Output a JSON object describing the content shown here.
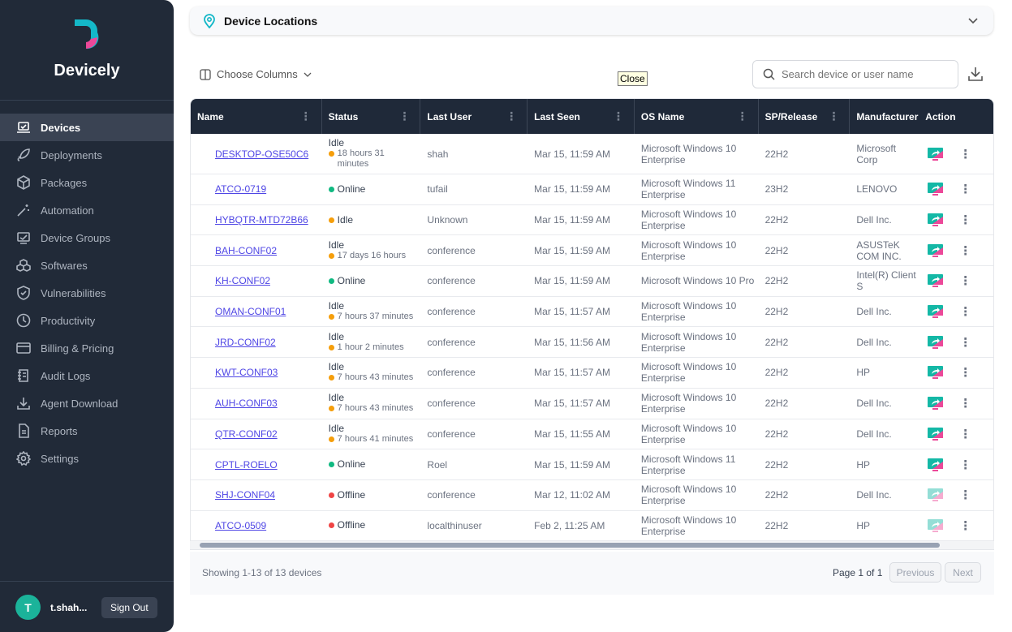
{
  "brand": {
    "name": "Devicely",
    "colors": {
      "teal": "#14b8c8",
      "pink": "#ec4899"
    }
  },
  "sidebar": {
    "items": [
      {
        "label": "Devices",
        "icon": "laptop-check-icon",
        "active": true
      },
      {
        "label": "Deployments",
        "icon": "rocket-icon"
      },
      {
        "label": "Packages",
        "icon": "package-icon"
      },
      {
        "label": "Automation",
        "icon": "magic-wand-icon"
      },
      {
        "label": "Device Groups",
        "icon": "device-group-icon"
      },
      {
        "label": "Softwares",
        "icon": "cubes-icon"
      },
      {
        "label": "Vulnerabilities",
        "icon": "shield-icon"
      },
      {
        "label": "Productivity",
        "icon": "clock-icon"
      },
      {
        "label": "Billing & Pricing",
        "icon": "credit-card-icon"
      },
      {
        "label": "Audit Logs",
        "icon": "audit-log-icon"
      },
      {
        "label": "Agent Download",
        "icon": "download-icon"
      },
      {
        "label": "Reports",
        "icon": "report-icon"
      },
      {
        "label": "Settings",
        "icon": "gear-icon"
      }
    ],
    "user": {
      "initial": "T",
      "name": "t.shah...",
      "sign_out": "Sign Out"
    }
  },
  "locations": {
    "title": "Device Locations"
  },
  "toolbar": {
    "choose_columns": "Choose Columns",
    "tooltip": "Close",
    "search_placeholder": "Search device or user name"
  },
  "table": {
    "columns": [
      "Name",
      "Status",
      "Last User",
      "Last Seen",
      "OS Name",
      "SP/Release",
      "Manufacturer",
      "Action"
    ],
    "rows": [
      {
        "name": "DESKTOP-OSE50C6",
        "status": "Idle",
        "status_detail": "18 hours 31 minutes",
        "user": "shah",
        "seen": "Mar 15, 11:59 AM",
        "os": "Microsoft Windows 10 Enterprise",
        "sp": "22H2",
        "mfr": "Microsoft Corp"
      },
      {
        "name": "ATCO-0719",
        "status": "Online",
        "status_detail": "",
        "user": "tufail",
        "seen": "Mar 15, 11:59 AM",
        "os": "Microsoft Windows 11 Enterprise",
        "sp": "23H2",
        "mfr": "LENOVO"
      },
      {
        "name": "HYBQTR-MTD72B66",
        "status": "Idle",
        "status_detail": "",
        "user": "Unknown",
        "seen": "Mar 15, 11:59 AM",
        "os": "Microsoft Windows 10 Enterprise",
        "sp": "22H2",
        "mfr": "Dell Inc."
      },
      {
        "name": "BAH-CONF02",
        "status": "Idle",
        "status_detail": "17 days 16 hours",
        "user": "conference",
        "seen": "Mar 15, 11:59 AM",
        "os": "Microsoft Windows 10 Enterprise",
        "sp": "22H2",
        "mfr": "ASUSTeK COM INC."
      },
      {
        "name": "KH-CONF02",
        "status": "Online",
        "status_detail": "",
        "user": "conference",
        "seen": "Mar 15, 11:59 AM",
        "os": "Microsoft Windows 10 Pro",
        "sp": "22H2",
        "mfr": "Intel(R) Client S"
      },
      {
        "name": "OMAN-CONF01",
        "status": "Idle",
        "status_detail": "7 hours 37 minutes",
        "user": "conference",
        "seen": "Mar 15, 11:57 AM",
        "os": "Microsoft Windows 10 Enterprise",
        "sp": "22H2",
        "mfr": "Dell Inc."
      },
      {
        "name": "JRD-CONF02",
        "status": "Idle",
        "status_detail": "1 hour 2 minutes",
        "user": "conference",
        "seen": "Mar 15, 11:56 AM",
        "os": "Microsoft Windows 10 Enterprise",
        "sp": "22H2",
        "mfr": "Dell Inc."
      },
      {
        "name": "KWT-CONF03",
        "status": "Idle",
        "status_detail": "7 hours 43 minutes",
        "user": "conference",
        "seen": "Mar 15, 11:57 AM",
        "os": "Microsoft Windows 10 Enterprise",
        "sp": "22H2",
        "mfr": "HP"
      },
      {
        "name": "AUH-CONF03",
        "status": "Idle",
        "status_detail": "7 hours 43 minutes",
        "user": "conference",
        "seen": "Mar 15, 11:57 AM",
        "os": "Microsoft Windows 10 Enterprise",
        "sp": "22H2",
        "mfr": "Dell Inc."
      },
      {
        "name": "QTR-CONF02",
        "status": "Idle",
        "status_detail": "7 hours 41 minutes",
        "user": "conference",
        "seen": "Mar 15, 11:55 AM",
        "os": "Microsoft Windows 10 Enterprise",
        "sp": "22H2",
        "mfr": "Dell Inc."
      },
      {
        "name": "CPTL-ROELO",
        "status": "Online",
        "status_detail": "",
        "user": "Roel",
        "seen": "Mar 15, 11:59 AM",
        "os": "Microsoft Windows 11 Enterprise",
        "sp": "22H2",
        "mfr": "HP"
      },
      {
        "name": "SHJ-CONF04",
        "status": "Offline",
        "status_detail": "",
        "user": "conference",
        "seen": "Mar 12, 11:02 AM",
        "os": "Microsoft Windows 10 Enterprise",
        "sp": "22H2",
        "mfr": "Dell Inc."
      },
      {
        "name": "ATCO-0509",
        "status": "Offline",
        "status_detail": "",
        "user": "localthinuser",
        "seen": "Feb 2, 11:25 AM",
        "os": "Microsoft Windows 10 Enterprise",
        "sp": "22H2",
        "mfr": "HP"
      }
    ]
  },
  "status_colors": {
    "Idle": "#f59e0b",
    "Online": "#10b981",
    "Offline": "#ef4444"
  },
  "footer": {
    "showing": "Showing 1-13 of 13 devices",
    "page": "Page 1 of 1",
    "previous": "Previous",
    "next": "Next"
  }
}
